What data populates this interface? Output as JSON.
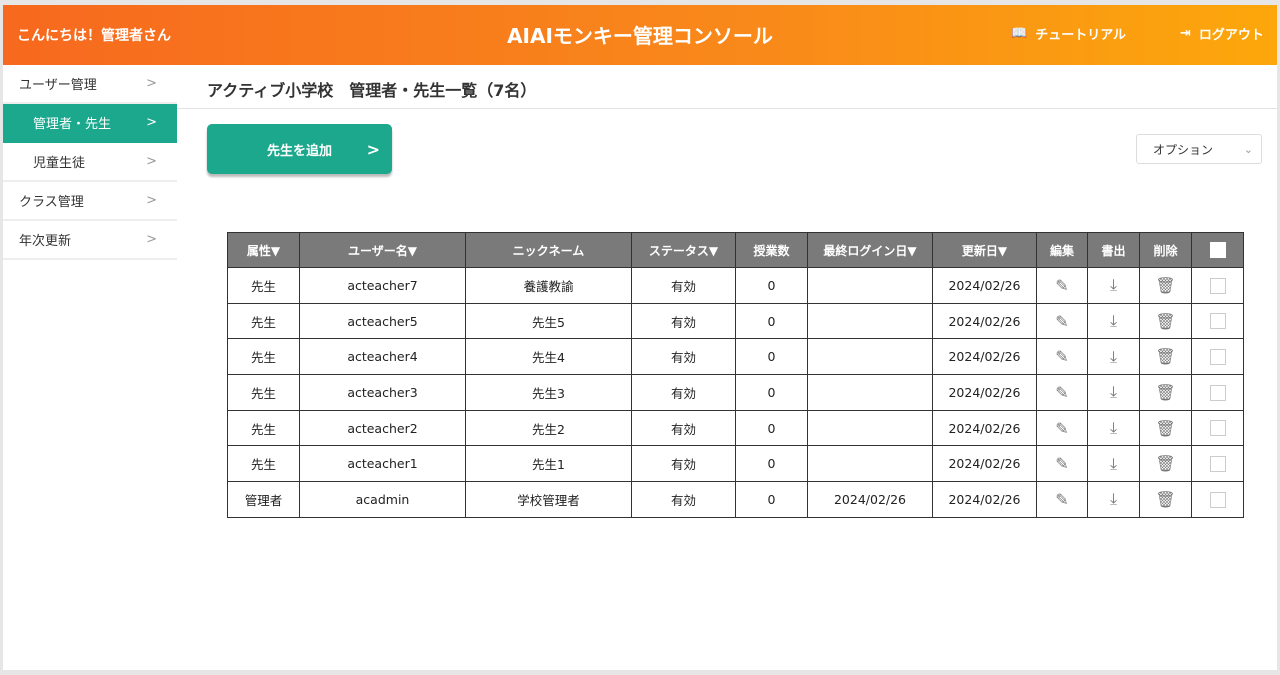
{
  "header": {
    "greeting": "こんにちは！管理者さん",
    "title": "AIAIモンキー管理コンソール",
    "tutorial": "チュートリアル",
    "logout": "ログアウト"
  },
  "sidebar": {
    "items": [
      {
        "label": "ユーザー管理"
      },
      {
        "label": "管理者・先生",
        "active": true
      },
      {
        "label": "児童生徒"
      },
      {
        "label": "クラス管理"
      },
      {
        "label": "年次更新"
      }
    ]
  },
  "main": {
    "title": "アクティブ小学校　管理者・先生一覧（7名）",
    "add_button": "先生を追加",
    "options_select": "オプション"
  },
  "table": {
    "headers": [
      "属性▼",
      "ユーザー名▼",
      "ニックネーム",
      "ステータス▼",
      "授業数",
      "最終ログイン日▼",
      "更新日▼",
      "編集",
      "書出",
      "削除"
    ],
    "rows": [
      [
        "先生",
        "acteacher7",
        "養護教諭",
        "有効",
        "0",
        "",
        "2024/02/26"
      ],
      [
        "先生",
        "acteacher5",
        "先生5",
        "有効",
        "0",
        "",
        "2024/02/26"
      ],
      [
        "先生",
        "acteacher4",
        "先生4",
        "有効",
        "0",
        "",
        "2024/02/26"
      ],
      [
        "先生",
        "acteacher3",
        "先生3",
        "有効",
        "0",
        "",
        "2024/02/26"
      ],
      [
        "先生",
        "acteacher2",
        "先生2",
        "有効",
        "0",
        "",
        "2024/02/26"
      ],
      [
        "先生",
        "acteacher1",
        "先生1",
        "有効",
        "0",
        "",
        "2024/02/26"
      ],
      [
        "管理者",
        "acadmin",
        "学校管理者",
        "有効",
        "0",
        "2024/02/26",
        "2024/02/26"
      ]
    ]
  },
  "colors": {
    "accent": "#1ba88c",
    "header_start": "#f7691e",
    "header_end": "#fca70b"
  }
}
